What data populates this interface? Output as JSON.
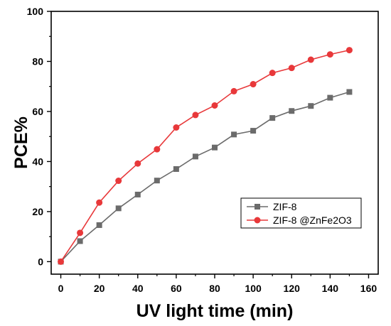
{
  "chart_data": {
    "type": "line",
    "title": "",
    "xlabel": "UV light time (min)",
    "ylabel": "PCE%",
    "xlim": [
      -5,
      165
    ],
    "ylim": [
      -5,
      100
    ],
    "xticks": [
      0,
      20,
      40,
      60,
      80,
      100,
      120,
      140,
      160
    ],
    "yticks": [
      0,
      20,
      40,
      60,
      80,
      100
    ],
    "grid": false,
    "legend_position": "bottom-right",
    "series": [
      {
        "name": "ZIF-8",
        "color": "#6b6b6b",
        "marker": "square",
        "x": [
          0,
          10,
          20,
          30,
          40,
          50,
          60,
          70,
          80,
          90,
          100,
          110,
          120,
          130,
          140,
          150
        ],
        "y": [
          0,
          8.2,
          14.6,
          21.3,
          26.8,
          32.4,
          37.0,
          42.0,
          45.6,
          50.8,
          52.3,
          57.4,
          60.2,
          62.2,
          65.5,
          67.8
        ]
      },
      {
        "name": "ZIF-8 @ZnFe2O3",
        "color": "#e8383a",
        "marker": "circle",
        "x": [
          0,
          10,
          20,
          30,
          40,
          50,
          60,
          70,
          80,
          90,
          100,
          110,
          120,
          130,
          140,
          150
        ],
        "y": [
          0,
          11.5,
          23.6,
          32.3,
          39.2,
          44.9,
          53.6,
          58.6,
          62.4,
          68.1,
          70.9,
          75.4,
          77.4,
          80.7,
          82.8,
          84.5
        ]
      }
    ]
  }
}
